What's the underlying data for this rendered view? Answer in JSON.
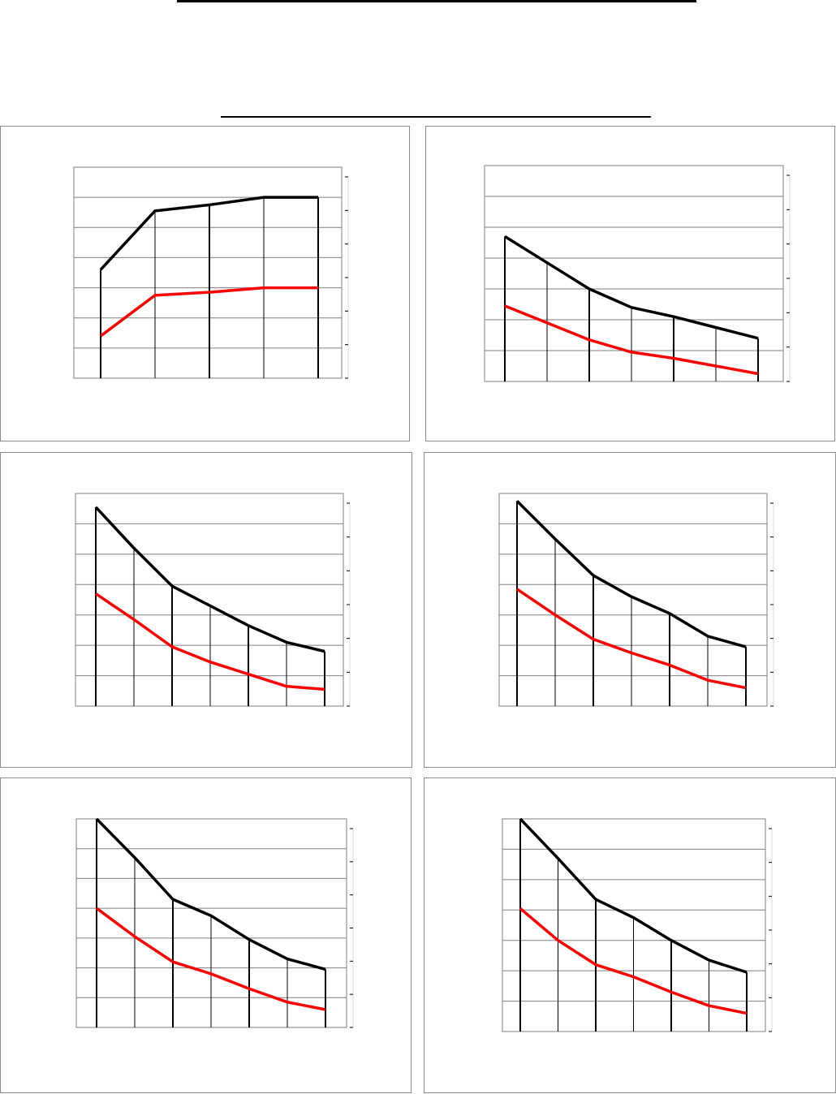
{
  "colors": {
    "series_black": "#000000",
    "series_red": "#ff0000",
    "grid": "#7f7f7f",
    "panel_border": "#8c8c8c"
  },
  "chart_data": [
    {
      "type": "line",
      "x": [
        1,
        2,
        3,
        4,
        5
      ],
      "ylim": [
        0,
        7
      ],
      "grid": true,
      "series": [
        {
          "color": "#000000",
          "values": [
            3.6,
            5.55,
            5.75,
            6.0,
            6.0
          ]
        },
        {
          "color": "#ff0000",
          "values": [
            1.4,
            2.75,
            2.85,
            3.0,
            3.0
          ]
        }
      ]
    },
    {
      "type": "line",
      "x": [
        1,
        2,
        3,
        4,
        5,
        6,
        7
      ],
      "ylim": [
        0,
        7
      ],
      "grid": true,
      "series": [
        {
          "color": "#000000",
          "values": [
            4.7,
            3.85,
            3.0,
            2.4,
            2.1,
            1.75,
            1.4
          ]
        },
        {
          "color": "#ff0000",
          "values": [
            2.45,
            1.9,
            1.35,
            0.95,
            0.75,
            0.5,
            0.25
          ]
        }
      ]
    },
    {
      "type": "line",
      "x": [
        1,
        2,
        3,
        4,
        5,
        6,
        7
      ],
      "ylim": [
        0,
        7
      ],
      "grid": true,
      "series": [
        {
          "color": "#000000",
          "values": [
            6.55,
            5.2,
            3.95,
            3.3,
            2.65,
            2.1,
            1.8
          ]
        },
        {
          "color": "#ff0000",
          "values": [
            3.7,
            2.85,
            1.95,
            1.45,
            1.05,
            0.65,
            0.55
          ]
        }
      ]
    },
    {
      "type": "line",
      "x": [
        1,
        2,
        3,
        4,
        5,
        6,
        7
      ],
      "ylim": [
        0,
        7
      ],
      "grid": true,
      "series": [
        {
          "color": "#000000",
          "values": [
            6.75,
            5.5,
            4.3,
            3.6,
            3.05,
            2.3,
            1.95
          ]
        },
        {
          "color": "#ff0000",
          "values": [
            3.85,
            3.0,
            2.2,
            1.75,
            1.35,
            0.85,
            0.6
          ]
        }
      ]
    },
    {
      "type": "line",
      "x": [
        1,
        2,
        3,
        4,
        5,
        6,
        7
      ],
      "ylim": [
        0,
        7
      ],
      "grid": true,
      "series": [
        {
          "color": "#000000",
          "values": [
            7.0,
            5.7,
            4.3,
            3.75,
            2.95,
            2.3,
            1.95
          ]
        },
        {
          "color": "#ff0000",
          "values": [
            4.0,
            3.05,
            2.2,
            1.8,
            1.3,
            0.85,
            0.6
          ]
        }
      ]
    },
    {
      "type": "line",
      "x": [
        1,
        2,
        3,
        4,
        5,
        6,
        7
      ],
      "ylim": [
        0,
        7
      ],
      "grid": true,
      "series": [
        {
          "color": "#000000",
          "values": [
            7.0,
            5.7,
            4.35,
            3.75,
            3.0,
            2.35,
            1.95
          ]
        },
        {
          "color": "#ff0000",
          "values": [
            4.05,
            3.0,
            2.2,
            1.8,
            1.3,
            0.85,
            0.6
          ]
        }
      ]
    }
  ]
}
